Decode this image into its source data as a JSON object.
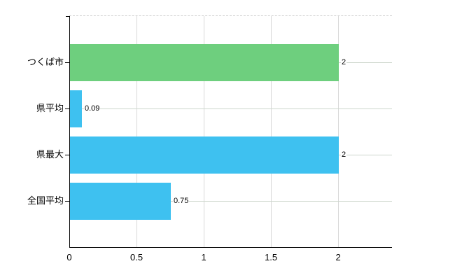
{
  "chart": {
    "background": "#ffffff",
    "axis_color": "#000000",
    "grid_color_vertical": "#d9d9d9",
    "grid_color_horizontal": "#cdd6cc",
    "top_border_color": "#d0d0d0",
    "text_color": "#000000",
    "green": "#6ecf7e",
    "blue": "#3ec1f0"
  },
  "chart_data": {
    "type": "bar",
    "orientation": "horizontal",
    "title": "",
    "categories": [
      "つくば市",
      "県平均",
      "県最大",
      "全国平均"
    ],
    "values": [
      2,
      0.09,
      2,
      0.75
    ],
    "value_labels": [
      "2",
      "0.09",
      "2",
      "0.75"
    ],
    "bar_colors": [
      "#6ecf7e",
      "#3ec1f0",
      "#3ec1f0",
      "#3ec1f0"
    ],
    "xlim": [
      0,
      2.4
    ],
    "x_ticks": [
      0,
      0.5,
      1,
      1.5,
      2
    ],
    "x_tick_labels": [
      "0",
      "0.5",
      "1",
      "1.5",
      "2"
    ],
    "grid": true,
    "legend": null
  }
}
